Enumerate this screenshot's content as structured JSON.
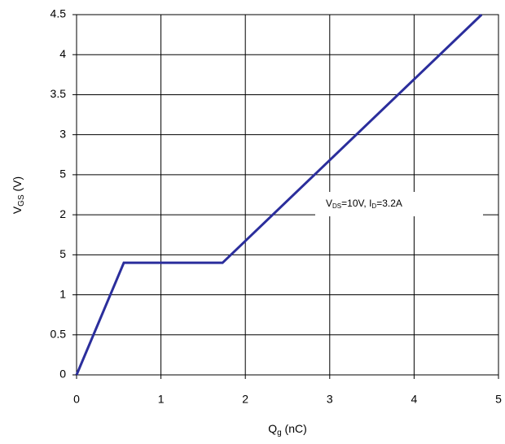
{
  "chart_data": {
    "type": "line",
    "x_label": [
      "Q",
      "g",
      " (nC)"
    ],
    "y_label": [
      "V",
      "GS",
      " (V)"
    ],
    "annotation": [
      "V",
      "DS",
      "=10V, I",
      "D",
      "=3.2A"
    ],
    "x": [
      0,
      0.56,
      1.73,
      4.8
    ],
    "values": [
      0,
      1.4,
      1.4,
      4.5
    ],
    "color": "#2b2e9c",
    "xlim": [
      0,
      5
    ],
    "ylim": [
      0,
      4.5
    ],
    "xticks": [
      0,
      1,
      2,
      3,
      4,
      5
    ],
    "yticks": [
      0,
      0.5,
      1,
      {
        "value": 1.5,
        "label": "5"
      },
      2,
      {
        "value": 2.5,
        "label": "5"
      },
      3,
      3.5,
      4,
      4.5
    ],
    "grid": true
  }
}
